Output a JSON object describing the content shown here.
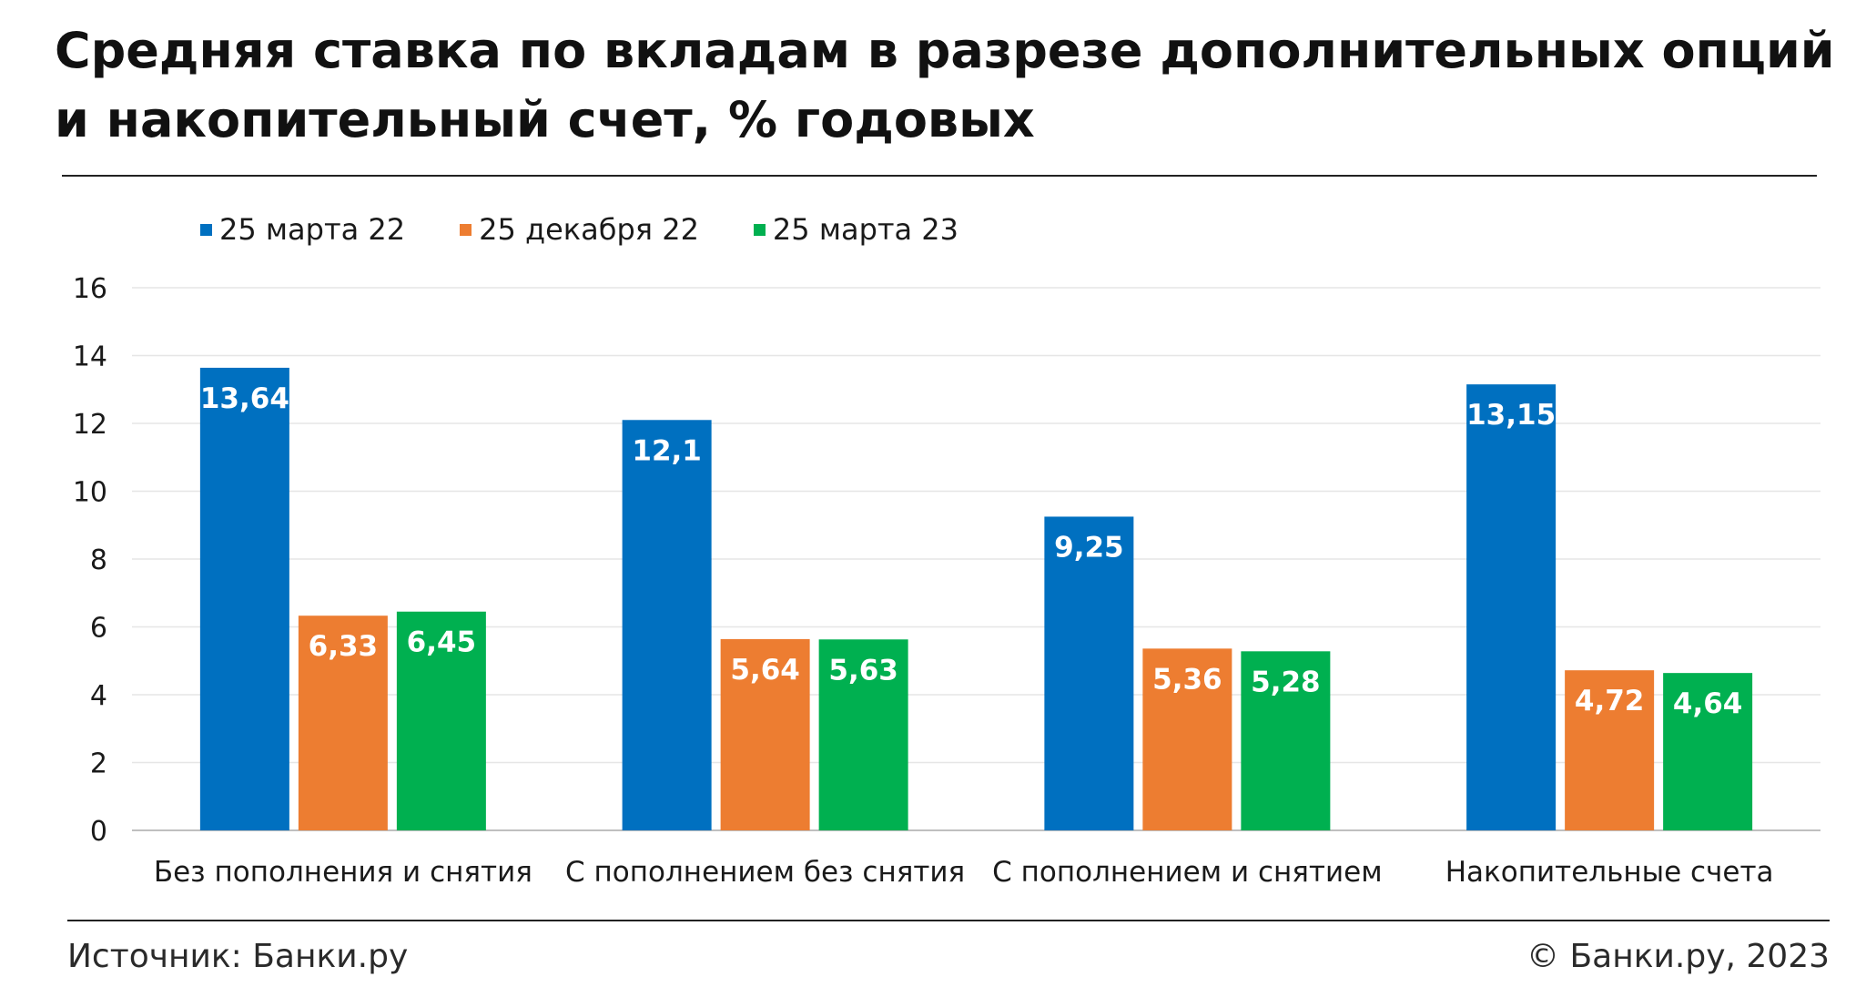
{
  "title": "Средняя ставка по вкладам в разрезе дополнительных опций и накопительный счет, % годовых",
  "footer": {
    "source": "Источник: Банки.ру",
    "copyright": "© Банки.ру, 2023"
  },
  "chart_data": {
    "type": "bar",
    "title": "Средняя ставка по вкладам в разрезе дополнительных опций и накопительный счет, % годовых",
    "categories": [
      "Без пополнения и снятия",
      "С пополнением без снятия",
      "С пополнением и снятием",
      "Накопительные счета"
    ],
    "series": [
      {
        "name": "25 марта 22",
        "color": "#0070C0",
        "values": [
          13.64,
          12.1,
          9.25,
          13.15
        ],
        "labels": [
          "13,64",
          "12,1",
          "9,25",
          "13,15"
        ]
      },
      {
        "name": "25 декабря 22",
        "color": "#ED7D31",
        "values": [
          6.33,
          5.64,
          5.36,
          4.72
        ],
        "labels": [
          "6,33",
          "5,64",
          "5,36",
          "4,72"
        ]
      },
      {
        "name": "25 марта 23",
        "color": "#00B050",
        "values": [
          6.45,
          5.63,
          5.28,
          4.64
        ],
        "labels": [
          "6,45",
          "5,63",
          "5,28",
          "4,64"
        ]
      }
    ],
    "ylim": [
      0,
      16
    ],
    "yticks": [
      0,
      2,
      4,
      6,
      8,
      10,
      12,
      14,
      16
    ],
    "xlabel": "",
    "ylabel": "",
    "grid": true,
    "legend_position": "top-left"
  }
}
